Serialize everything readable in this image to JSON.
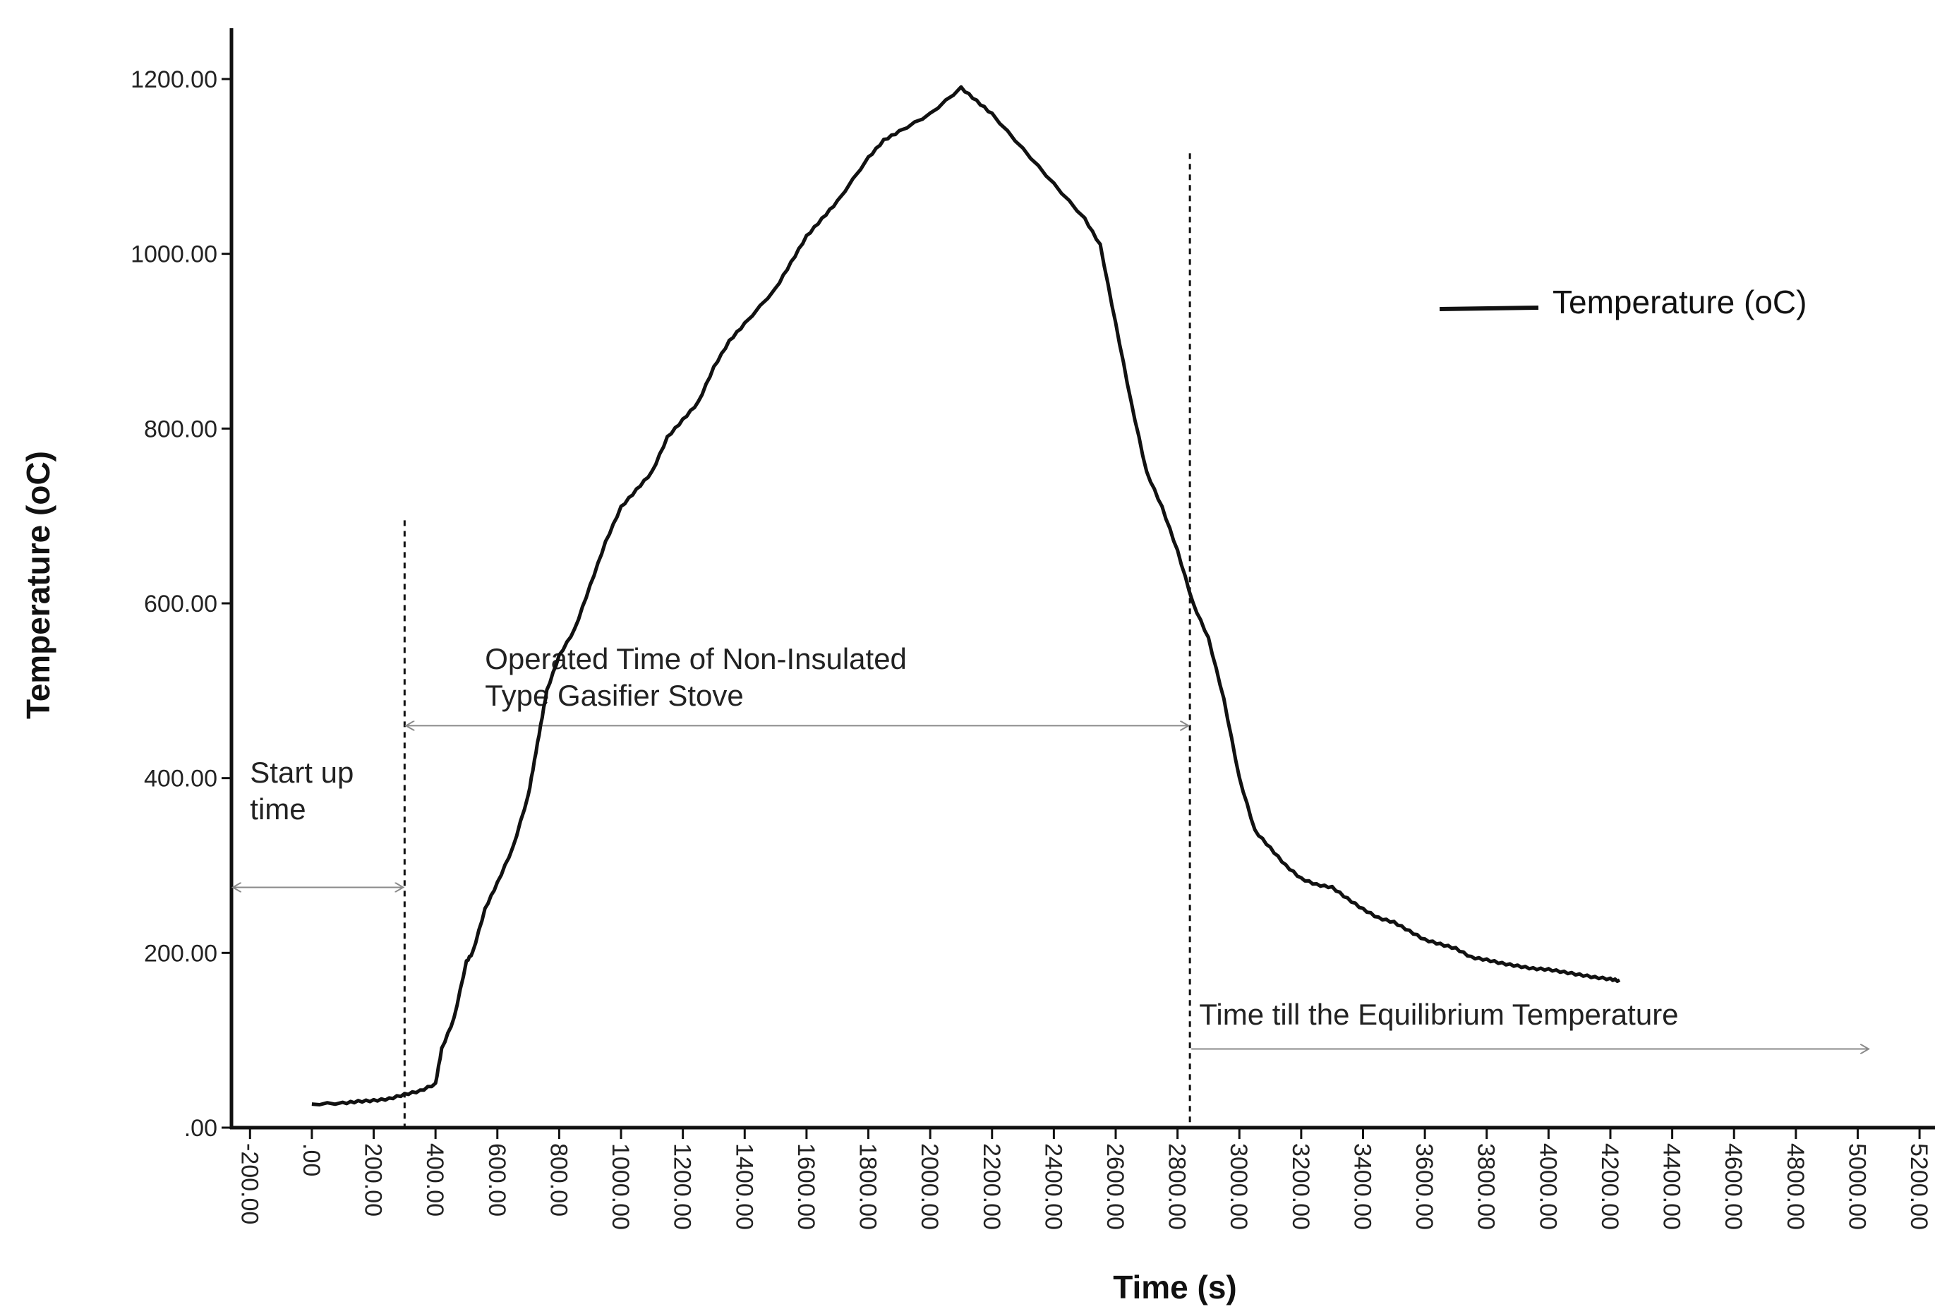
{
  "chart_data": {
    "type": "line",
    "xlabel": "Time (s)",
    "ylabel": "Temperature (oC)",
    "xlim": [
      -260,
      5250
    ],
    "ylim": [
      0,
      1200
    ],
    "x_ticks": [
      -200,
      0,
      200,
      400,
      600,
      800,
      1000,
      1200,
      1400,
      1600,
      1800,
      2000,
      2200,
      2400,
      2600,
      2800,
      3000,
      3200,
      3400,
      3600,
      3800,
      4000,
      4200,
      4400,
      4600,
      4800,
      5000,
      5200
    ],
    "x_tick_labels": [
      "-200.00",
      ".00",
      "200.00",
      "400.00",
      "600.00",
      "800.00",
      "1000.00",
      "1200.00",
      "1400.00",
      "1600.00",
      "1800.00",
      "2000.00",
      "2200.00",
      "2400.00",
      "2600.00",
      "2800.00",
      "3000.00",
      "3200.00",
      "3400.00",
      "3600.00",
      "3800.00",
      "4000.00",
      "4200.00",
      "4400.00",
      "4600.00",
      "4800.00",
      "5000.00",
      "5200.00"
    ],
    "y_ticks": [
      0,
      200,
      400,
      600,
      800,
      1000,
      1200
    ],
    "y_tick_labels": [
      ".00",
      "200.00",
      "400.00",
      "600.00",
      "800.00",
      "1000.00",
      "1200.00"
    ],
    "grid": false,
    "legend": {
      "position": "top-right",
      "entries": [
        "Temperature (oC)"
      ]
    },
    "series": [
      {
        "name": "Temperature (oC)",
        "color": "#111111",
        "x": [
          0,
          100,
          150,
          200,
          250,
          300,
          350,
          400,
          420,
          460,
          500,
          520,
          560,
          600,
          650,
          700,
          720,
          740,
          760,
          800,
          850,
          900,
          950,
          1000,
          1050,
          1100,
          1150,
          1200,
          1250,
          1300,
          1350,
          1400,
          1500,
          1550,
          1600,
          1650,
          1700,
          1800,
          1850,
          1900,
          2000,
          2100,
          2150,
          2200,
          2300,
          2400,
          2500,
          2550,
          2600,
          2650,
          2700,
          2750,
          2800,
          2850,
          2900,
          2950,
          3000,
          3050,
          3100,
          3150,
          3200,
          3250,
          3300,
          3350,
          3400,
          3450,
          3500,
          3550,
          3600,
          3650,
          3700,
          3750,
          3800,
          3850,
          3900,
          3950,
          4000,
          4050,
          4100,
          4150,
          4200,
          4230
        ],
        "y": [
          27,
          28,
          30,
          31,
          33,
          38,
          42,
          50,
          90,
          125,
          190,
          200,
          250,
          280,
          320,
          380,
          420,
          460,
          500,
          540,
          570,
          620,
          670,
          710,
          730,
          750,
          790,
          810,
          830,
          870,
          900,
          920,
          960,
          990,
          1020,
          1040,
          1060,
          1110,
          1130,
          1140,
          1160,
          1190,
          1175,
          1160,
          1120,
          1080,
          1040,
          1010,
          920,
          830,
          750,
          710,
          660,
          600,
          560,
          490,
          400,
          340,
          320,
          300,
          285,
          278,
          275,
          262,
          250,
          240,
          235,
          225,
          215,
          210,
          205,
          195,
          192,
          188,
          185,
          182,
          181,
          178,
          175,
          172,
          170,
          168
        ]
      }
    ],
    "vlines": [
      300,
      2840
    ],
    "annotations": [
      {
        "lines": [
          "Start up",
          "time"
        ],
        "x_from": -260,
        "x_to": 300,
        "y": 275
      },
      {
        "lines": [
          "Operated Time of Non-Insulated",
          " Type Gasifier Stove"
        ],
        "x_from": 300,
        "x_to": 2840,
        "y": 460
      },
      {
        "lines": [
          "Time till the Equilibrium Temperature"
        ],
        "x_from": 2840,
        "x_to": 5040,
        "y": 90
      }
    ]
  }
}
